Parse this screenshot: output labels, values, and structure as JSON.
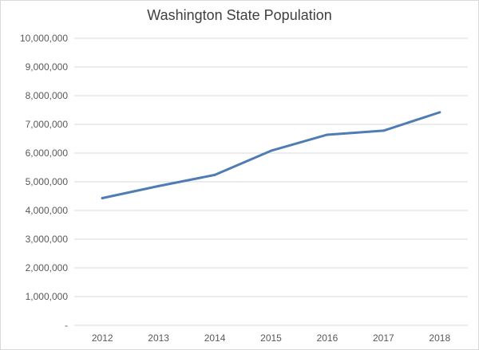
{
  "chart_data": {
    "type": "line",
    "title": "Washington State Population",
    "xlabel": "",
    "ylabel": "",
    "categories": [
      "2012",
      "2013",
      "2014",
      "2015",
      "2016",
      "2017",
      "2018"
    ],
    "series": [
      {
        "values": [
          4430000,
          4850000,
          5240000,
          6080000,
          6640000,
          6780000,
          7420000
        ]
      }
    ],
    "ylim": [
      0,
      10000000
    ],
    "yticks": [
      "-",
      "1,000,000",
      "2,000,000",
      "3,000,000",
      "4,000,000",
      "5,000,000",
      "6,000,000",
      "7,000,000",
      "8,000,000",
      "9,000,000",
      "10,000,000"
    ],
    "grid": true,
    "legend": "none",
    "line_color": "#4f7db3",
    "grid_color": "#d9d9d9"
  }
}
